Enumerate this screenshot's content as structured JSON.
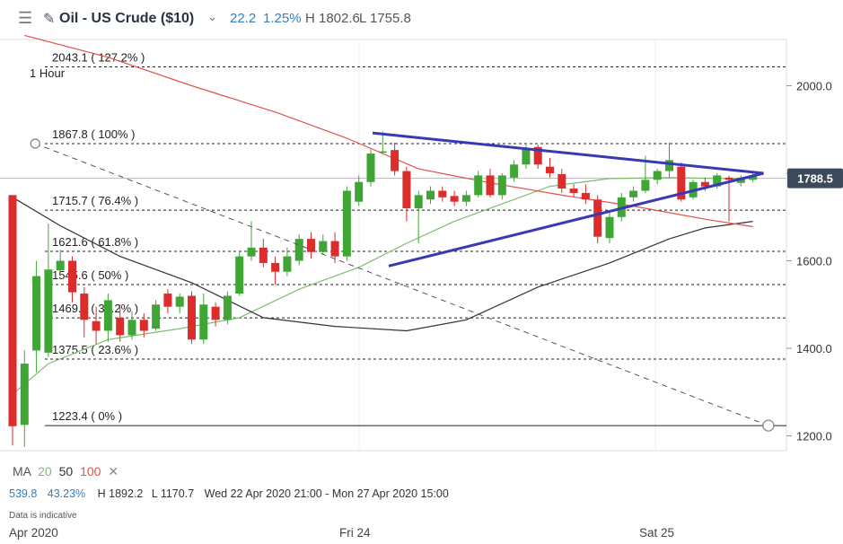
{
  "header": {
    "menu_icon": "hamburger-icon",
    "edit_icon": "pencil-icon",
    "title": "Oil - US Crude ($10)",
    "dropdown_icon": "chevron-down-icon",
    "change": "22.2",
    "change_pct": "1.25%",
    "high": "H 1802.6",
    "low": "L 1755.8"
  },
  "timeframe": "1 Hour",
  "price_tag": {
    "value": "1788.5",
    "color": "#3d4a5c"
  },
  "ma_legend": {
    "label": "MA",
    "ma20": "20",
    "ma50": "50",
    "ma100": "100",
    "ma20_color": "#7cbd6d",
    "ma50_color": "#333333",
    "ma100_color": "#e0534a",
    "close_icon": "close-icon"
  },
  "stats": {
    "value": "539.8",
    "pct": "43.23%",
    "high": "H 1892.2",
    "low": "L 1170.7",
    "range": "Wed 22 Apr 2020 21:00 - Mon 27 Apr 2020 15:00"
  },
  "note": "Data is indicative",
  "chart_data": {
    "type": "candlestick",
    "x_ticks": [
      "Apr 2020",
      "Fri 24",
      "Sat 25"
    ],
    "y_ticks": [
      2000.0,
      1800.0,
      1600.0,
      1400.0,
      1200.0
    ],
    "y_tick_labels": [
      "2000.0",
      "1800.0",
      "1600.0",
      "1400.0",
      "1200.0"
    ],
    "ylim": [
      1140,
      2120
    ],
    "fib_levels": [
      {
        "value": 2043.1,
        "label": "2043.1 ( 127.2% )"
      },
      {
        "value": 1867.8,
        "label": "1867.8 ( 100% )"
      },
      {
        "value": 1715.7,
        "label": "1715.7 ( 76.4% )"
      },
      {
        "value": 1621.6,
        "label": "1621.6 ( 61.8% )"
      },
      {
        "value": 1545.6,
        "label": "1545.6 ( 50% )"
      },
      {
        "value": 1469.5,
        "label": "1469.5 ( 38.2% )"
      },
      {
        "value": 1375.5,
        "label": "1375.5 ( 23.6% )"
      },
      {
        "value": 1223.4,
        "label": "1223.4 ( 0% )"
      }
    ],
    "current_price": 1788.5,
    "up_color": "#3fa535",
    "down_color": "#dd2c2c",
    "candles": [
      [
        1750,
        1222,
        1260,
        1178
      ],
      [
        1225,
        1365,
        1395,
        1175
      ],
      [
        1395,
        1565,
        1600,
        1345
      ],
      [
        1390,
        1580,
        1685,
        1380
      ],
      [
        1578,
        1600,
        1625,
        1565
      ],
      [
        1600,
        1528,
        1610,
        1505
      ],
      [
        1525,
        1465,
        1540,
        1425
      ],
      [
        1462,
        1440,
        1495,
        1410
      ],
      [
        1440,
        1510,
        1525,
        1415
      ],
      [
        1470,
        1430,
        1500,
        1415
      ],
      [
        1430,
        1465,
        1485,
        1420
      ],
      [
        1465,
        1440,
        1480,
        1425
      ],
      [
        1445,
        1500,
        1510,
        1440
      ],
      [
        1525,
        1495,
        1535,
        1480
      ],
      [
        1495,
        1518,
        1525,
        1480
      ],
      [
        1520,
        1420,
        1530,
        1410
      ],
      [
        1420,
        1500,
        1525,
        1410
      ],
      [
        1495,
        1465,
        1505,
        1450
      ],
      [
        1465,
        1520,
        1530,
        1455
      ],
      [
        1525,
        1610,
        1620,
        1520
      ],
      [
        1610,
        1630,
        1690,
        1600
      ],
      [
        1630,
        1595,
        1650,
        1585
      ],
      [
        1595,
        1575,
        1610,
        1545
      ],
      [
        1575,
        1610,
        1630,
        1565
      ],
      [
        1600,
        1650,
        1660,
        1590
      ],
      [
        1650,
        1620,
        1665,
        1605
      ],
      [
        1620,
        1645,
        1660,
        1615
      ],
      [
        1645,
        1610,
        1665,
        1595
      ],
      [
        1610,
        1760,
        1770,
        1600
      ],
      [
        1735,
        1780,
        1795,
        1725
      ],
      [
        1780,
        1845,
        1855,
        1770
      ],
      [
        1850,
        1850,
        1895,
        1845
      ],
      [
        1853,
        1805,
        1870,
        1795
      ],
      [
        1805,
        1720,
        1815,
        1690
      ],
      [
        1720,
        1750,
        1760,
        1640
      ],
      [
        1740,
        1760,
        1770,
        1730
      ],
      [
        1760,
        1745,
        1770,
        1735
      ],
      [
        1748,
        1735,
        1760,
        1725
      ],
      [
        1735,
        1750,
        1760,
        1725
      ],
      [
        1750,
        1795,
        1805,
        1745
      ],
      [
        1795,
        1750,
        1810,
        1745
      ],
      [
        1750,
        1795,
        1800,
        1740
      ],
      [
        1790,
        1820,
        1830,
        1780
      ],
      [
        1820,
        1855,
        1865,
        1810
      ],
      [
        1860,
        1820,
        1865,
        1810
      ],
      [
        1815,
        1800,
        1835,
        1790
      ],
      [
        1798,
        1765,
        1810,
        1755
      ],
      [
        1765,
        1755,
        1775,
        1745
      ],
      [
        1755,
        1740,
        1775,
        1730
      ],
      [
        1740,
        1655,
        1750,
        1640
      ],
      [
        1652,
        1700,
        1710,
        1640
      ],
      [
        1700,
        1745,
        1755,
        1690
      ],
      [
        1745,
        1760,
        1770,
        1735
      ],
      [
        1760,
        1785,
        1840,
        1755
      ],
      [
        1785,
        1805,
        1810,
        1775
      ],
      [
        1805,
        1830,
        1870,
        1790
      ],
      [
        1815,
        1740,
        1825,
        1735
      ],
      [
        1745,
        1780,
        1785,
        1740
      ],
      [
        1780,
        1770,
        1790,
        1760
      ],
      [
        1770,
        1795,
        1800,
        1765
      ],
      [
        1790,
        1785,
        1795,
        1690
      ],
      [
        1778,
        1790,
        1795,
        1770
      ],
      [
        1785,
        1795,
        1800,
        1780
      ]
    ],
    "moving_averages": [
      {
        "name": "MA 20",
        "points": [
          [
            0,
            1295
          ],
          [
            3,
            1365
          ],
          [
            8,
            1420
          ],
          [
            14,
            1445
          ],
          [
            19,
            1470
          ],
          [
            24,
            1535
          ],
          [
            29,
            1585
          ],
          [
            33,
            1640
          ],
          [
            37,
            1690
          ],
          [
            41,
            1730
          ],
          [
            45,
            1770
          ],
          [
            50,
            1788
          ],
          [
            55,
            1790
          ],
          [
            60,
            1788
          ],
          [
            62,
            1788
          ]
        ]
      },
      {
        "name": "MA 50",
        "points": [
          [
            0,
            1745
          ],
          [
            4,
            1680
          ],
          [
            9,
            1610
          ],
          [
            15,
            1550
          ],
          [
            21,
            1470
          ],
          [
            27,
            1450
          ],
          [
            33,
            1440
          ],
          [
            38,
            1465
          ],
          [
            44,
            1540
          ],
          [
            50,
            1595
          ],
          [
            55,
            1650
          ],
          [
            58,
            1675
          ],
          [
            62,
            1690
          ]
        ]
      },
      {
        "name": "MA 100",
        "points": [
          [
            1,
            2115
          ],
          [
            8,
            2065
          ],
          [
            15,
            2000
          ],
          [
            22,
            1940
          ],
          [
            28,
            1880
          ],
          [
            34,
            1810
          ],
          [
            40,
            1778
          ],
          [
            46,
            1750
          ],
          [
            52,
            1725
          ],
          [
            58,
            1695
          ],
          [
            62,
            1678
          ]
        ]
      }
    ],
    "trend_lines": [
      {
        "name": "triangle-upper",
        "points": [
          [
            30.15,
            1892
          ],
          [
            62.9,
            1800
          ]
        ]
      },
      {
        "name": "triangle-lower",
        "points": [
          [
            31.5,
            1588
          ],
          [
            62.9,
            1800
          ]
        ]
      },
      {
        "name": "fib-dashed",
        "points": [
          [
            1.9,
            1867.8
          ],
          [
            63.3,
            1223.4
          ]
        ]
      }
    ]
  }
}
